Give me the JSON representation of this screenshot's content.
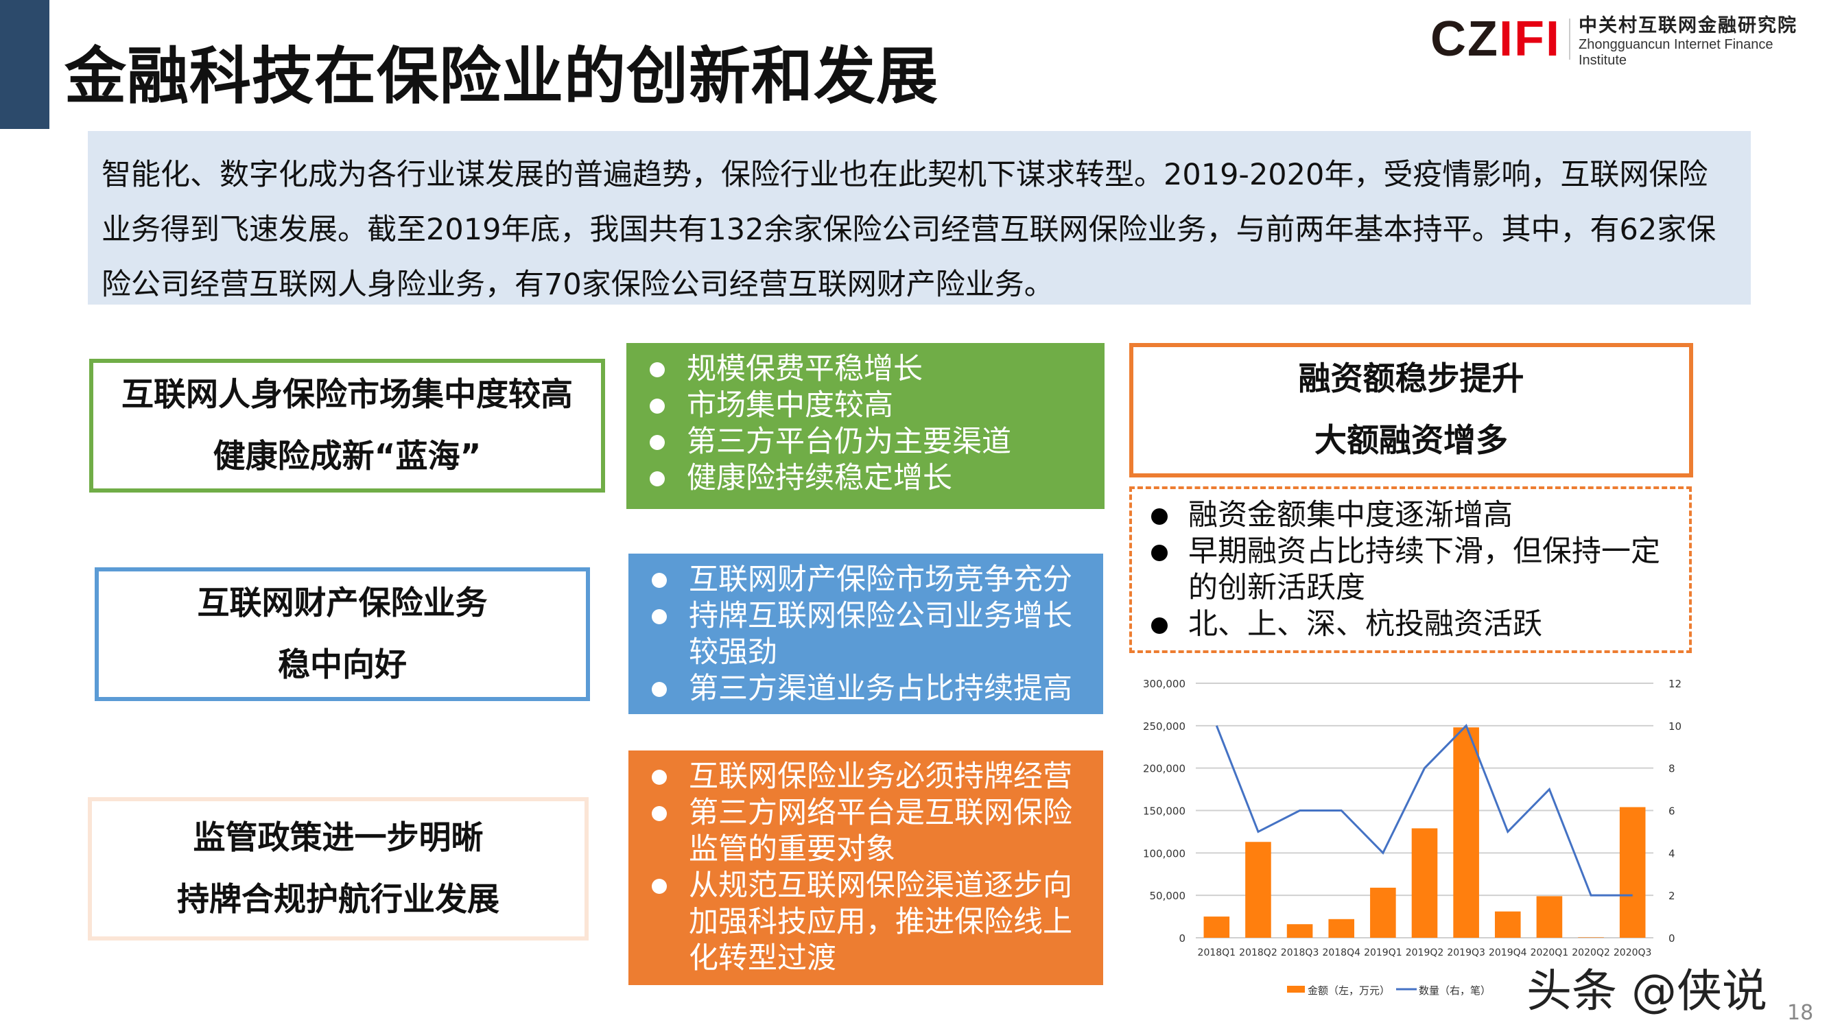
{
  "title": "金融科技在保险业的创新和发展",
  "logo": {
    "mark_black": "CZ",
    "mark_red": "IFI",
    "cn": "中关村互联网金融研究院",
    "en": "Zhongguancun Internet Finance Institute"
  },
  "intro": "智能化、数字化成为各行业谋发展的普遍趋势，保险行业也在此契机下谋求转型。2019-2020年，受疫情影响，互联网保险业务得到飞速发展。截至2019年底，我国共有132余家保险公司经营互联网保险业务，与前两年基本持平。其中，有62家保险公司经营互联网人身险业务，有70家保险公司经营互联网财产险业务。",
  "sections": [
    {
      "heading": [
        "互联网人身保险市场集中度较高",
        "健康险成新“蓝海”"
      ],
      "color": "#70ad47",
      "bullets": [
        "规模保费平稳增长",
        "市场集中度较高",
        "第三方平台仍为主要渠道",
        "健康险持续稳定增长"
      ]
    },
    {
      "heading": [
        "互联网财产保险业务",
        "稳中向好"
      ],
      "color": "#5b9bd5",
      "bullets": [
        "互联网财产保险市场竞争充分",
        "持牌互联网保险公司业务增长较强劲",
        "第三方渠道业务占比持续提高"
      ]
    },
    {
      "heading": [
        "监管政策进一步明晰",
        "持牌合规护航行业发展"
      ],
      "color": "#ed7d31",
      "bullets": [
        "互联网保险业务必须持牌经营",
        "第三方网络平台是互联网保险监管的重要对象",
        "从规范互联网保险渠道逐步向加强科技应用，推进保险线上化转型过渡"
      ]
    }
  ],
  "financing": {
    "heading": [
      "融资额稳步提升",
      "大额融资增多"
    ],
    "bullets": [
      "融资金额集中度逐渐增高",
      "早期融资占比持续下滑，但保持一定的创新活跃度",
      "北、上、深、杭投融资活跃"
    ]
  },
  "chart_data": {
    "type": "bar+line",
    "categories": [
      "2018Q1",
      "2018Q2",
      "2018Q3",
      "2018Q4",
      "2019Q1",
      "2019Q2",
      "2019Q3",
      "2019Q4",
      "2020Q1",
      "2020Q2",
      "2020Q3"
    ],
    "series": [
      {
        "name": "金额（左，万元）",
        "type": "bar",
        "axis": "left",
        "color": "#ff7f0e",
        "values": [
          25000,
          113000,
          16000,
          22000,
          59000,
          129000,
          248000,
          31000,
          49000,
          500,
          154000
        ]
      },
      {
        "name": "数量（右，笔）",
        "type": "line",
        "axis": "right",
        "color": "#4472c4",
        "values": [
          10,
          5,
          6,
          6,
          4,
          8,
          10,
          5,
          7,
          2,
          2
        ]
      }
    ],
    "left_ticks": [
      "0",
      "50,000",
      "100,000",
      "150,000",
      "200,000",
      "250,000",
      "300,000"
    ],
    "right_ticks": [
      "0",
      "2",
      "4",
      "6",
      "8",
      "10",
      "12"
    ],
    "ylim_left": [
      0,
      300000
    ],
    "ylim_right": [
      0,
      12
    ],
    "grid": true,
    "legend": "bottom"
  },
  "watermark": "头条 @侠说",
  "page_number": "18"
}
